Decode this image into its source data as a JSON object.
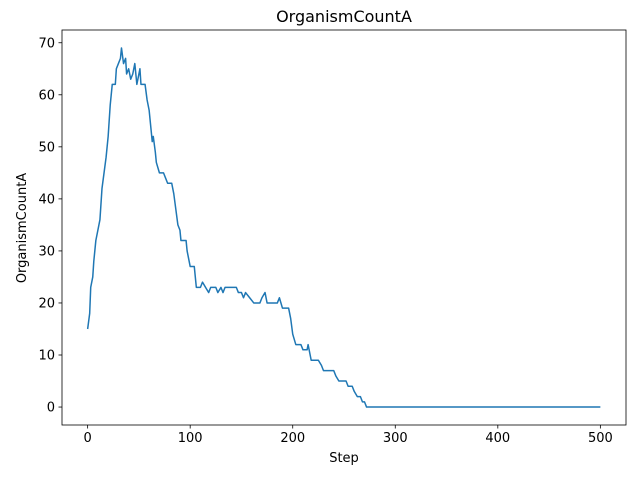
{
  "chart_data": {
    "type": "line",
    "title": "OrganismCountA",
    "xlabel": "Step",
    "ylabel": "OrganismCountA",
    "color": "#1f77b4",
    "grid": false,
    "xlim": [
      -25,
      525
    ],
    "ylim": [
      -3.45,
      72.45
    ],
    "xticks": [
      0,
      100,
      200,
      300,
      400,
      500
    ],
    "yticks": [
      0,
      10,
      20,
      30,
      40,
      50,
      60,
      70
    ],
    "x": [
      0,
      2,
      3,
      5,
      6,
      8,
      10,
      12,
      14,
      16,
      18,
      20,
      22,
      24,
      27,
      28,
      30,
      32,
      33,
      35,
      37,
      38,
      40,
      42,
      44,
      46,
      48,
      50,
      51,
      52,
      56,
      58,
      60,
      62,
      63,
      64,
      66,
      67,
      70,
      74,
      76,
      78,
      82,
      84,
      86,
      88,
      90,
      91,
      96,
      97,
      99,
      100,
      104,
      106,
      110,
      112,
      115,
      118,
      120,
      125,
      127,
      130,
      132,
      134,
      145,
      147,
      150,
      152,
      154,
      158,
      162,
      168,
      170,
      173,
      175,
      185,
      187,
      190,
      196,
      198,
      200,
      203,
      208,
      210,
      214,
      215,
      218,
      225,
      228,
      230,
      240,
      242,
      245,
      252,
      254,
      258,
      260,
      263,
      266,
      268,
      270,
      272,
      500
    ],
    "values": [
      15,
      18,
      23,
      25,
      28,
      32,
      34,
      36,
      42,
      45,
      48,
      52,
      58,
      62,
      62,
      65,
      66,
      67,
      69,
      66,
      67,
      64,
      65,
      63,
      64,
      66,
      62,
      64,
      65,
      62,
      62,
      59,
      57,
      53,
      51,
      52,
      49,
      47,
      45,
      45,
      44,
      43,
      43,
      41,
      38,
      35,
      34,
      32,
      32,
      30,
      28,
      27,
      27,
      23,
      23,
      24,
      23,
      22,
      23,
      23,
      22,
      23,
      22,
      23,
      23,
      22,
      22,
      21,
      22,
      21,
      20,
      20,
      21,
      22,
      20,
      20,
      21,
      19,
      19,
      17,
      14,
      12,
      12,
      11,
      11,
      12,
      9,
      9,
      8,
      7,
      7,
      6,
      5,
      5,
      4,
      4,
      3,
      2,
      2,
      1,
      1,
      0,
      0
    ]
  }
}
